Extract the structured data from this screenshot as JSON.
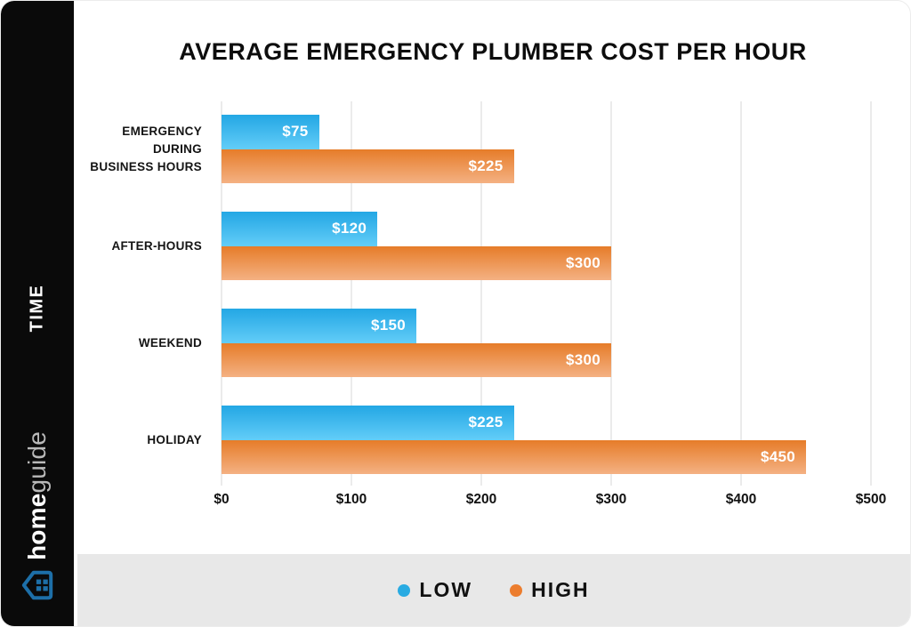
{
  "chart_data": {
    "type": "bar",
    "orientation": "horizontal",
    "title": "AVERAGE EMERGENCY PLUMBER COST PER HOUR",
    "categories": [
      "EMERGENCY DURING BUSINESS HOURS",
      "AFTER-HOURS",
      "WEEKEND",
      "HOLIDAY"
    ],
    "categories_display": [
      [
        "EMERGENCY DURING",
        "BUSINESS HOURS"
      ],
      [
        "AFTER-HOURS"
      ],
      [
        "WEEKEND"
      ],
      [
        "HOLIDAY"
      ]
    ],
    "series": [
      {
        "name": "LOW",
        "values": [
          75,
          120,
          150,
          225
        ],
        "labels": [
          "$75",
          "$120",
          "$150",
          "$225"
        ],
        "color": "#29abe2"
      },
      {
        "name": "HIGH",
        "values": [
          225,
          300,
          300,
          450
        ],
        "labels": [
          "$225",
          "$300",
          "$300",
          "$450"
        ],
        "color": "#ec7d2e"
      }
    ],
    "x_axis": {
      "min": 0,
      "max": 500,
      "ticks": [
        "$0",
        "$100",
        "$200",
        "$300",
        "$400",
        "$500"
      ]
    },
    "y_axis_label": "TIME",
    "grid": true,
    "legend_position": "bottom",
    "legend": [
      {
        "label": "LOW",
        "color": "#29abe2"
      },
      {
        "label": "HIGH",
        "color": "#ec7d2e"
      }
    ]
  },
  "sidebar": {
    "axis_label": "TIME",
    "brand_bold": "home",
    "brand_light": "guide"
  },
  "colors": {
    "low_gradient_top": "#23a7e4",
    "low_gradient_bottom": "#63cdf8",
    "high_gradient_top": "#e67c29",
    "high_gradient_bottom": "#f4b183",
    "sidebar_bg": "#0a0a0a",
    "legend_band_bg": "#e8e8e8",
    "brand_blue": "#1d6fa8",
    "grid_line": "#ebebeb"
  }
}
